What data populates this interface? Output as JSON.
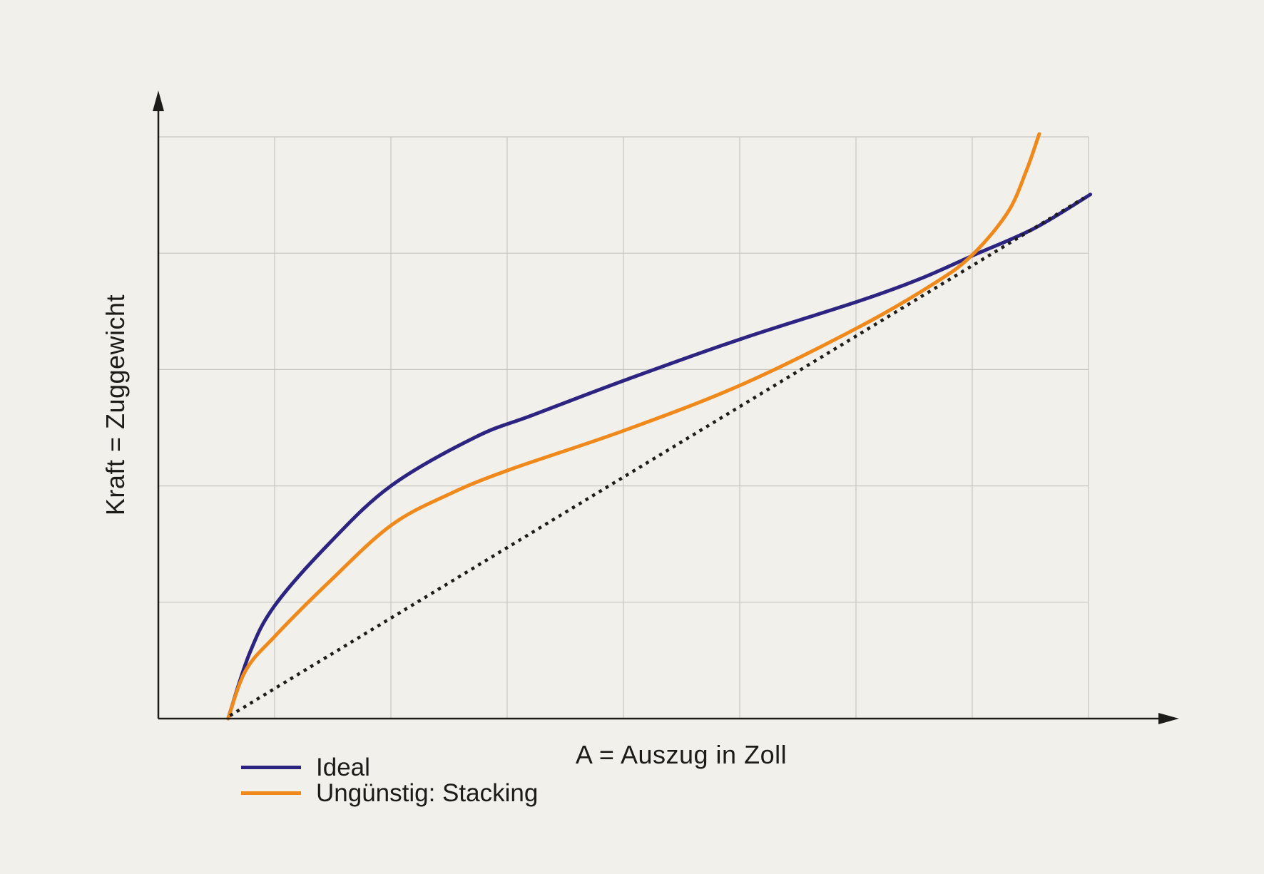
{
  "figure": {
    "background_color": "#f1f0ea",
    "text_color": "#1c1b18",
    "axis_color": "#1d1c19",
    "grid_color": "#c7c6bf"
  },
  "chart_data": {
    "type": "line",
    "title": "",
    "xlabel": "A = Auszug in Zoll",
    "ylabel": "Kraft = Zuggewicht",
    "x_axis": {
      "tick_labels": "none",
      "range_normalized": [
        0,
        1
      ],
      "arrow": true
    },
    "y_axis": {
      "tick_labels": "none",
      "range_normalized": [
        0,
        1
      ],
      "arrow": true
    },
    "grid": {
      "show": true,
      "vertical_divisions": 8,
      "horizontal_divisions": 5,
      "color": "#c7c6bf"
    },
    "legend_position": "bottom-left",
    "series": [
      {
        "name": "Ideal",
        "color": "#2d2482",
        "style": "solid",
        "width": 5,
        "smooth": true,
        "points": [
          [
            0.075,
            0.0
          ],
          [
            0.098,
            0.112
          ],
          [
            0.125,
            0.194
          ],
          [
            0.183,
            0.3
          ],
          [
            0.25,
            0.4
          ],
          [
            0.341,
            0.484
          ],
          [
            0.403,
            0.522
          ],
          [
            0.502,
            0.582
          ],
          [
            0.627,
            0.653
          ],
          [
            0.752,
            0.717
          ],
          [
            0.819,
            0.756
          ],
          [
            0.877,
            0.797
          ],
          [
            0.942,
            0.843
          ],
          [
            1.002,
            0.901
          ]
        ]
      },
      {
        "name": "Ungünstig: Stacking",
        "color": "#f0891c",
        "style": "solid",
        "width": 5,
        "smooth": true,
        "points": [
          [
            0.075,
            0.0
          ],
          [
            0.094,
            0.083
          ],
          [
            0.125,
            0.141
          ],
          [
            0.183,
            0.234
          ],
          [
            0.25,
            0.332
          ],
          [
            0.313,
            0.386
          ],
          [
            0.376,
            0.427
          ],
          [
            0.502,
            0.496
          ],
          [
            0.627,
            0.574
          ],
          [
            0.752,
            0.672
          ],
          [
            0.835,
            0.749
          ],
          [
            0.875,
            0.797
          ],
          [
            0.913,
            0.87
          ],
          [
            0.933,
            0.941
          ],
          [
            0.947,
            1.005
          ]
        ]
      },
      {
        "name": "linear-reference-dotted",
        "color": "#1d1c19",
        "style": "dotted",
        "width": 4.5,
        "smooth": false,
        "points": [
          [
            0.077,
            0.005
          ],
          [
            0.995,
            0.895
          ]
        ]
      }
    ]
  },
  "legend": {
    "items": [
      {
        "label": "Ideal",
        "color": "#2d2482"
      },
      {
        "label": "Ungünstig: Stacking",
        "color": "#f0891c"
      }
    ]
  }
}
